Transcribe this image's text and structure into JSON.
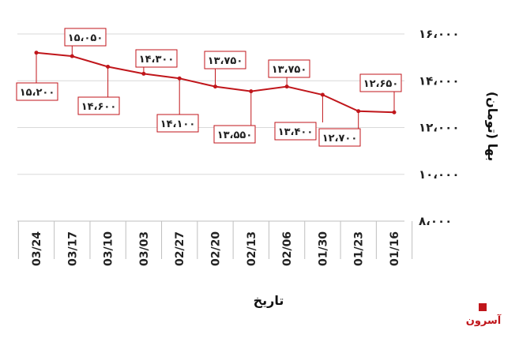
{
  "chart_data": {
    "type": "line",
    "categories": [
      "03/24",
      "03/17",
      "03/10",
      "03/03",
      "02/27",
      "02/20",
      "02/13",
      "02/06",
      "01/30",
      "01/23",
      "01/16"
    ],
    "series": [
      {
        "values": [
          15200,
          15050,
          14600,
          14300,
          14100,
          13750,
          13550,
          13750,
          13400,
          12700,
          12650
        ]
      }
    ],
    "data_labels": [
      "۱۵،۲۰۰",
      "۱۵،۰۵۰",
      "۱۴،۶۰۰",
      "۱۴،۳۰۰",
      "۱۴،۱۰۰",
      "۱۳،۷۵۰",
      "۱۳،۵۵۰",
      "۱۳،۷۵۰",
      "۱۳،۴۰۰",
      "۱۲،۷۰۰",
      "۱۲،۶۵۰"
    ],
    "yticks": [
      8000,
      10000,
      12000,
      14000,
      16000
    ],
    "ytick_labels": [
      "۸،۰۰۰",
      "۱۰،۰۰۰",
      "۱۲،۰۰۰",
      "۱۴،۰۰۰",
      "۱۶،۰۰۰"
    ],
    "ylim": [
      8000,
      16000
    ],
    "xlabel": "تاریخ",
    "ylabel": "بها (تومان)",
    "grid": true,
    "y_axis_side": "right",
    "line_color": "#c0161b"
  },
  "logo": {
    "text": "آسرون"
  }
}
